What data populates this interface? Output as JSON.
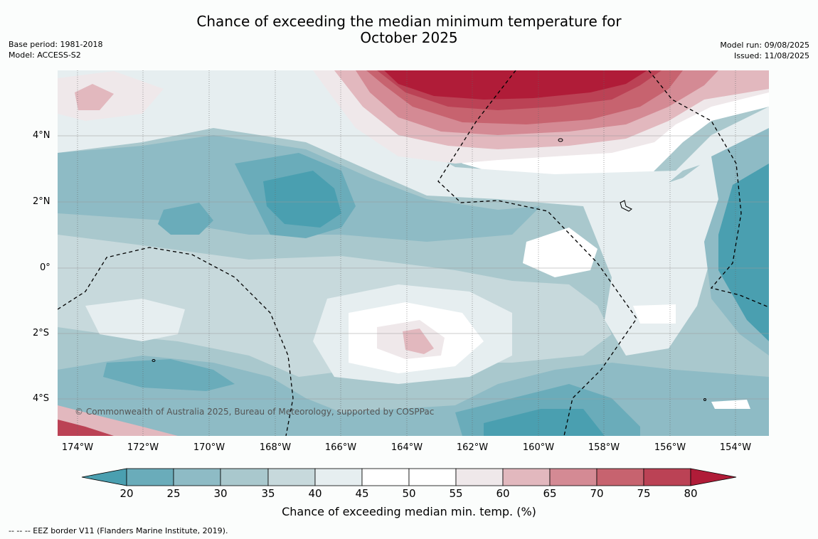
{
  "title_line1": "Chance of exceeding the median minimum temperature for",
  "title_line2": "October 2025",
  "base_period": "Base period: 1981-2018",
  "model": "Model: ACCESS-S2",
  "model_run": "Model run: 09/08/2025",
  "issued": "Issued: 11/08/2025",
  "lat_labels": [
    "4°N",
    "2°N",
    "0°",
    "2°S",
    "4°S"
  ],
  "lon_labels": [
    "174°W",
    "172°W",
    "170°W",
    "168°W",
    "166°W",
    "164°W",
    "162°W",
    "160°W",
    "158°W",
    "156°W",
    "154°W"
  ],
  "copyright": "© Commonwealth of Australia 2025, Bureau of Meteorology, supported by COSPPac",
  "colorbar": {
    "ticks": [
      "20",
      "25",
      "30",
      "35",
      "40",
      "45",
      "50",
      "55",
      "60",
      "65",
      "70",
      "75",
      "80"
    ],
    "label": "Chance of exceeding median min. temp. (%)",
    "colors": [
      "#4a9fb0",
      "#6aacba",
      "#8ebbc5",
      "#a9c8cd",
      "#c7d9dc",
      "#e6eef0",
      "#ffffff",
      "#ffffff",
      "#efe8ea",
      "#e2b8be",
      "#d48a94",
      "#c7636f",
      "#bb4255",
      "#b01c38"
    ]
  },
  "footer": "--  --  -- EEZ border V11 (Flanders Marine Institute, 2019)."
}
